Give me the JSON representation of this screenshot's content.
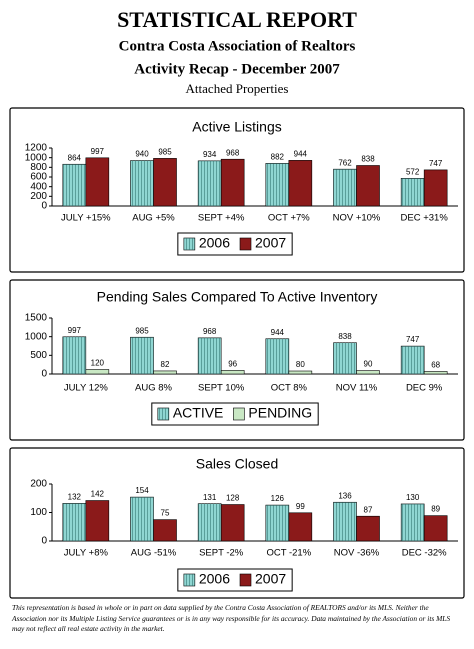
{
  "header": {
    "title": "STATISTICAL REPORT",
    "line1": "Contra Costa Association of Realtors",
    "line2": "Activity Recap - December 2007",
    "line3": "Attached Properties"
  },
  "chart_data": [
    {
      "type": "bar",
      "title": "Active Listings",
      "categories": [
        "JULY +15%",
        "AUG +5%",
        "SEPT +4%",
        "OCT +7%",
        "NOV +10%",
        "DEC +31%"
      ],
      "series": [
        {
          "name": "2006",
          "color": "#8fd6d2",
          "hatch": true,
          "values": [
            864,
            940,
            934,
            882,
            762,
            572
          ]
        },
        {
          "name": "2007",
          "color": "#8b1a1a",
          "hatch": false,
          "values": [
            997,
            985,
            968,
            944,
            838,
            747
          ]
        }
      ],
      "ylim": [
        0,
        1200
      ],
      "yticks": [
        0,
        200,
        400,
        600,
        800,
        1000,
        1200
      ]
    },
    {
      "type": "bar",
      "title": "Pending Sales Compared To Active Inventory",
      "categories": [
        "JULY 12%",
        "AUG  8%",
        "SEPT  10%",
        "OCT 8%",
        "NOV  11%",
        "DEC  9%"
      ],
      "series": [
        {
          "name": "ACTIVE",
          "color": "#8fd6d2",
          "hatch": true,
          "values": [
            997,
            985,
            968,
            944,
            838,
            747
          ]
        },
        {
          "name": "PENDING",
          "color": "#c9e8c4",
          "hatch": false,
          "values": [
            120,
            82,
            96,
            80,
            90,
            68
          ]
        }
      ],
      "ylim": [
        0,
        1500
      ],
      "yticks": [
        0,
        500,
        1000,
        1500
      ]
    },
    {
      "type": "bar",
      "title": "Sales Closed",
      "categories": [
        "JULY +8%",
        "AUG  -51%",
        "SEPT  -2%",
        "OCT -21%",
        "NOV  -36%",
        "DEC  -32%"
      ],
      "series": [
        {
          "name": "2006",
          "color": "#8fd6d2",
          "hatch": true,
          "values": [
            132,
            154,
            131,
            126,
            136,
            130
          ]
        },
        {
          "name": "2007",
          "color": "#8b1a1a",
          "hatch": false,
          "values": [
            142,
            75,
            128,
            99,
            87,
            89
          ]
        }
      ],
      "ylim": [
        0,
        200
      ],
      "yticks": [
        0,
        100,
        200
      ]
    }
  ],
  "footer": "This representation is based in whole or in part on data supplied by the Contra Costa Association of REALTORS and/or its MLS.  Neither the Association nor its Multiple Listing Service guarantees or is in any way responsible for its accuracy.  Data maintained by the Association or its MLS may not reflect all real estate activity in the market."
}
